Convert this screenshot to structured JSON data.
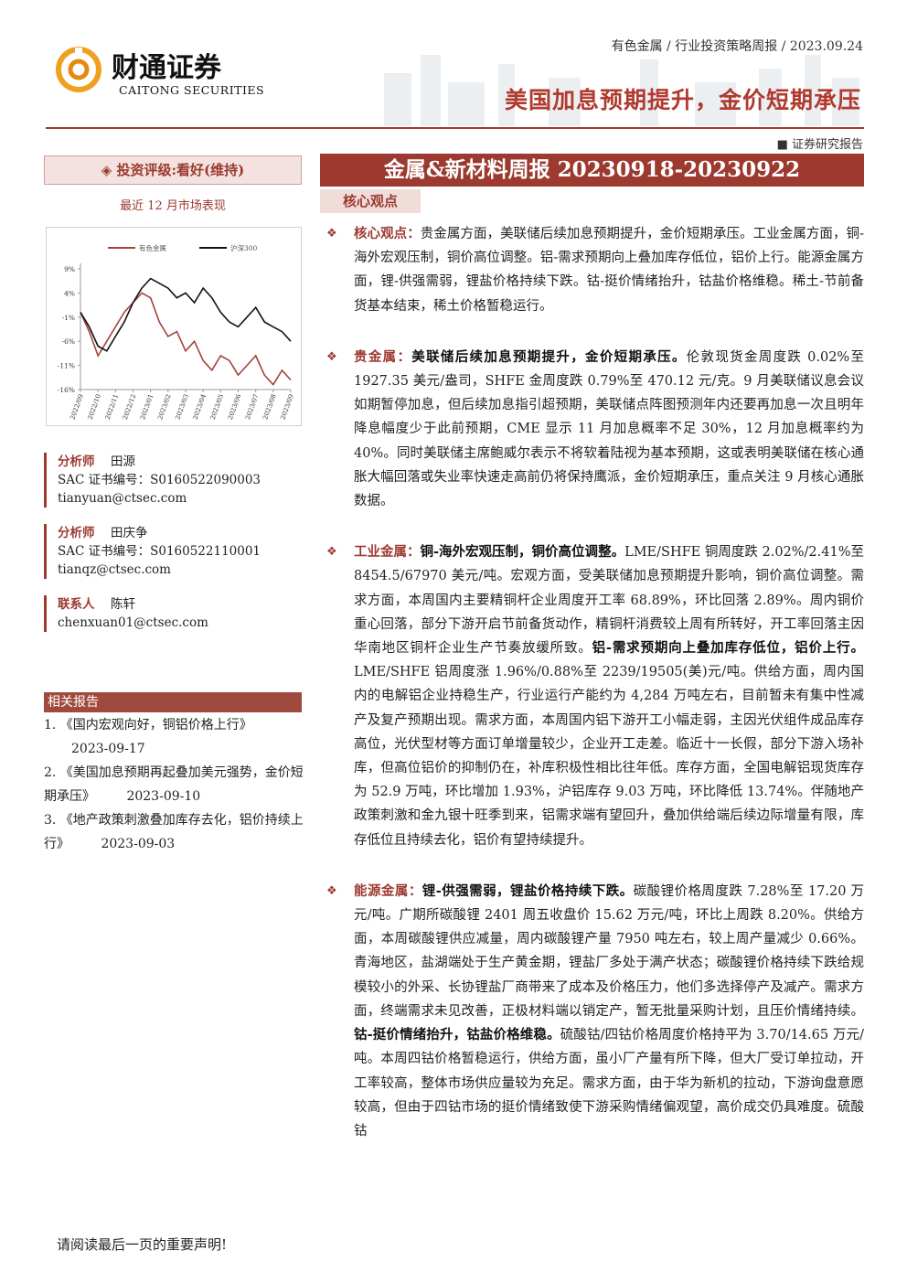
{
  "header": {
    "logo_cn": "财通证券",
    "logo_en": "CAITONG SECURITIES",
    "breadcrumb": "有色金属 / 行业投资策略周报 / 2023.09.24",
    "title": "美国加息预期提升，金价短期承压",
    "report_kind": "证券研究报告"
  },
  "sidebar": {
    "rating": "投资评级:看好(维持)",
    "chart_caption": "最近 12 月市场表现",
    "analysts": [
      {
        "role": "分析师",
        "name": "田源",
        "cert": "SAC 证书编号：S0160522090003",
        "email": "tianyuan@ctsec.com"
      },
      {
        "role": "分析师",
        "name": "田庆争",
        "cert": "SAC 证书编号：S0160522110001",
        "email": "tianqz@ctsec.com"
      },
      {
        "role": "联系人",
        "name": "陈轩",
        "email": "chenxuan01@ctsec.com"
      }
    ],
    "related_title": "相关报告",
    "related": [
      {
        "title": "1. 《国内宏观向好，铜铝价格上行》",
        "date": "2023-09-17"
      },
      {
        "title": "2. 《美国加息预期再起叠加美元强势，金价短期承压》",
        "date": "2023-09-10"
      },
      {
        "title": "3. 《地产政策刺激叠加库存去化，铝价持续上行》",
        "date": "2023-09-03"
      }
    ]
  },
  "chart_data": {
    "type": "line",
    "categories": [
      "2022/09",
      null,
      "2022/10",
      null,
      "2022/11",
      null,
      "2022/12",
      null,
      "2023/01",
      null,
      "2023/02",
      null,
      "2023/03",
      null,
      "2023/04",
      null,
      "2023/05",
      null,
      "2023/06",
      null,
      "2023/07",
      null,
      "2023/08",
      null,
      "2023/09"
    ],
    "series": [
      {
        "name": "有色金属",
        "color": "#a4433b",
        "values": [
          0,
          -4,
          -9,
          -6,
          -3,
          0,
          2,
          4,
          3,
          -2,
          -5,
          -4,
          -8,
          -6,
          -10,
          -12,
          -9,
          -10,
          -13,
          -11,
          -9,
          -13,
          -15,
          -12,
          -14
        ]
      },
      {
        "name": "沪深300",
        "color": "#111111",
        "values": [
          0,
          -3,
          -7,
          -8,
          -5,
          -2,
          2,
          5,
          7,
          6,
          5,
          3,
          4,
          2,
          5,
          3,
          0,
          -2,
          -3,
          -1,
          1,
          -2,
          -3,
          -4,
          -6
        ]
      }
    ],
    "ylim": [
      -16,
      9
    ],
    "yticks": [
      {
        "value": 9,
        "label": "9%"
      },
      {
        "value": 4,
        "label": "4%"
      },
      {
        "value": -1,
        "label": "-1%"
      },
      {
        "value": -6,
        "label": "-6%"
      },
      {
        "value": -11,
        "label": "-11%"
      },
      {
        "value": -16,
        "label": "-16%"
      }
    ],
    "legend": "top"
  },
  "main": {
    "banner": "金属&新材料周报 20230918-20230922",
    "tab": "核心观点",
    "sections": [
      {
        "runs": [
          {
            "text": "核心观点：",
            "style": "label"
          },
          {
            "text": "贵金属方面，美联储后续加息预期提升，金价短期承压。工业金属方面，铜-海外宏观压制，铜价高位调整。铝-需求预期向上叠加库存低位，铝价上行。能源金属方面，锂-供强需弱，锂盐价格持续下跌。钴-挺价情绪抬升，钴盐价格维稳。稀土-节前备货基本结束，稀土价格暂稳运行。",
            "style": "plain"
          }
        ]
      },
      {
        "runs": [
          {
            "text": "贵金属：",
            "style": "label"
          },
          {
            "text": "美联储后续加息预期提升，金价短期承压。",
            "style": "bold"
          },
          {
            "text": "伦敦现货金周度跌 0.02%至 1927.35 美元/盎司，SHFE 金周度跌 0.79%至 470.12 元/克。9 月美联储议息会议如期暂停加息，但后续加息指引超预期，美联储点阵图预测年内还要再加息一次且明年降息幅度少于此前预期，CME 显示 11 月加息概率不足 30%，12 月加息概率约为 40%。同时美联储主席鲍威尔表示不将软着陆视为基本预期，这或表明美联储在核心通胀大幅回落或失业率快速走高前仍将保持鹰派，金价短期承压，重点关注 9 月核心通胀数据。",
            "style": "plain"
          }
        ]
      },
      {
        "runs": [
          {
            "text": "工业金属：",
            "style": "label"
          },
          {
            "text": "铜-海外宏观压制，铜价高位调整。",
            "style": "bold"
          },
          {
            "text": "LME/SHFE 铜周度跌 2.02%/2.41%至 8454.5/67970 美元/吨。宏观方面，受美联储加息预期提升影响，铜价高位调整。需求方面，本周国内主要精铜杆企业周度开工率 68.89%，环比回落 2.89%。周内铜价重心回落，部分下游开启节前备货动作，精铜杆消费较上周有所转好，开工率回落主因华南地区铜杆企业生产节奏放缓所致。",
            "style": "plain"
          },
          {
            "text": "铝-需求预期向上叠加库存低位，铝价上行。",
            "style": "bold"
          },
          {
            "text": "LME/SHFE 铝周度涨 1.96%/0.88%至 2239/19505(美)元/吨。供给方面，周内国内的电解铝企业持稳生产，行业运行产能约为 4,284 万吨左右，目前暂未有集中性减产及复产预期出现。需求方面，本周国内铝下游开工小幅走弱，主因光伏组件成品库存高位，光伏型材等方面订单增量较少，企业开工走差。临近十一长假，部分下游入场补库，但高位铝价的抑制仍在，补库积极性相比往年低。库存方面，全国电解铝现货库存为 52.9 万吨，环比增加 1.93%，沪铝库存 9.03 万吨，环比降低 13.74%。伴随地产政策刺激和金九银十旺季到来，铝需求端有望回升，叠加供给端后续边际增量有限，库存低位且持续去化，铝价有望持续提升。",
            "style": "plain"
          }
        ]
      },
      {
        "runs": [
          {
            "text": "能源金属：",
            "style": "label"
          },
          {
            "text": "锂-供强需弱，锂盐价格持续下跌。",
            "style": "bold"
          },
          {
            "text": "碳酸锂价格周度跌 7.28%至 17.20 万元/吨。广期所碳酸锂 2401 周五收盘价 15.62 万元/吨，环比上周跌 8.20%。供给方面，本周碳酸锂供应减量，周内碳酸锂产量 7950 吨左右，较上周产量减少 0.66%。青海地区，盐湖端处于生产黄金期，锂盐厂多处于满产状态；碳酸锂价格持续下跌给规模较小的外采、长协锂盐厂商带来了成本及价格压力，他们多选择停产及减产。需求方面，终端需求未见改善，正极材料端以销定产，暂无批量采购计划，且压价情绪持续。",
            "style": "plain"
          },
          {
            "text": "钴-挺价情绪抬升，钴盐价格维稳。",
            "style": "bold"
          },
          {
            "text": "硫酸钴/四钴价格周度价格持平为 3.70/14.65 万元/吨。本周四钴价格暂稳运行，供给方面，虽小厂产量有所下降，但大厂受订单拉动，开工率较高，整体市场供应量较为充足。需求方面，由于华为新机的拉动，下游询盘意愿较高，但由于四钴市场的挺价情绪致使下游采购情绪偏观望，高价成交仍具难度。硫酸钴",
            "style": "plain"
          }
        ]
      }
    ]
  },
  "footer": "请阅读最后一页的重要声明!"
}
